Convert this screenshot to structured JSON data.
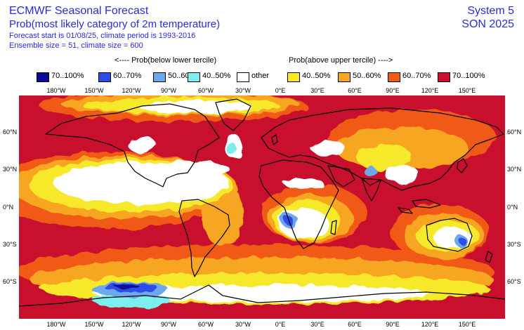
{
  "header": {
    "title": "ECMWF Seasonal Forecast",
    "subtitle": "Prob(most likely category of 2m temperature)",
    "forecast_info": "Forecast start is 01/08/25, climate period is 1993-2016",
    "ensemble_info": "Ensemble size = 51, climate size = 600",
    "system": "System 5",
    "season": "SON 2025"
  },
  "tercile_labels": {
    "below": "<---- Prob(below lower tercile)",
    "above": "Prob(above upper tercile) ---->"
  },
  "legend": [
    {
      "label": "70..100%",
      "color": "#0a0a96"
    },
    {
      "label": "60..70%",
      "color": "#2d4ee6"
    },
    {
      "label": "50..60%",
      "color": "#6ea8ec"
    },
    {
      "label": "40..50%",
      "color": "#7deeee"
    },
    {
      "label": "other",
      "color": "#ffffff"
    },
    {
      "label": "40..50%",
      "color": "#f6e92c"
    },
    {
      "label": "50..60%",
      "color": "#f7a622"
    },
    {
      "label": "60..70%",
      "color": "#f05a14"
    },
    {
      "label": "70..100%",
      "color": "#c8102e"
    }
  ],
  "lon_labels": [
    "180°W",
    "150°W",
    "120°W",
    "90°W",
    "60°W",
    "30°W",
    "0°E",
    "30°E",
    "60°E",
    "90°E",
    "120°E",
    "150°E"
  ],
  "lat_labels": [
    "60°N",
    "30°N",
    "0°N",
    "30°S",
    "60°S"
  ]
}
